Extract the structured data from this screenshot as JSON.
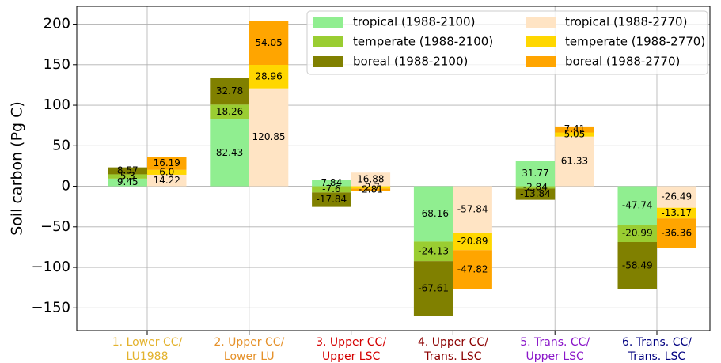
{
  "chart_data": {
    "type": "bar",
    "y_label": "Soil carbon (Pg C)",
    "categories": [
      [
        "1. Lower CC/",
        "LU1988"
      ],
      [
        "2. Upper CC/",
        "Lower LU"
      ],
      [
        "3. Upper CC/",
        "Upper LSC"
      ],
      [
        "4. Upper CC/",
        "Trans. LSC"
      ],
      [
        "5. Trans. CC/",
        "Upper LSC"
      ],
      [
        "6. Trans. CC/",
        "Trans. LSC"
      ]
    ],
    "category_colors": [
      "#e3b22c",
      "#e5912a",
      "#d40000",
      "#8b0000",
      "#8a16c9",
      "#000080"
    ],
    "series": [
      {
        "name": "tropical (1988-2100)",
        "color": "#90ee90",
        "values": [
          9.45,
          82.43,
          7.84,
          -68.16,
          31.77,
          -47.74
        ]
      },
      {
        "name": "temperate (1988-2100)",
        "color": "#9acd32",
        "values": [
          5.3,
          18.26,
          -7.6,
          -24.13,
          -2.84,
          -20.99
        ]
      },
      {
        "name": "boreal (1988-2100)",
        "color": "#808000",
        "values": [
          8.57,
          32.78,
          -17.84,
          -67.61,
          -13.84,
          -58.49
        ]
      },
      {
        "name": "tropical (1988-2770)",
        "color": "#ffe4c4",
        "values": [
          14.22,
          120.85,
          16.88,
          -57.84,
          61.33,
          -26.49
        ]
      },
      {
        "name": "temperate (1988-2770)",
        "color": "#ffd700",
        "values": [
          6.0,
          28.96,
          -2.7,
          -20.89,
          5.05,
          -13.17
        ],
        "value_labels": [
          "6.0",
          "28.96",
          "-2.7",
          "-20.89",
          "5.05",
          "-13.17"
        ]
      },
      {
        "name": "boreal (1988-2770)",
        "color": "#ffa500",
        "values": [
          16.19,
          54.05,
          -2.81,
          -47.82,
          7.41,
          -36.36
        ]
      }
    ],
    "ylim": [
      -178,
      222
    ],
    "yticks": [
      {
        "value": -150,
        "label": "−150"
      },
      {
        "value": -100,
        "label": "−100"
      },
      {
        "value": -50,
        "label": "−50"
      },
      0,
      50,
      100,
      150,
      200
    ],
    "grid": true,
    "legend": "upper right"
  }
}
